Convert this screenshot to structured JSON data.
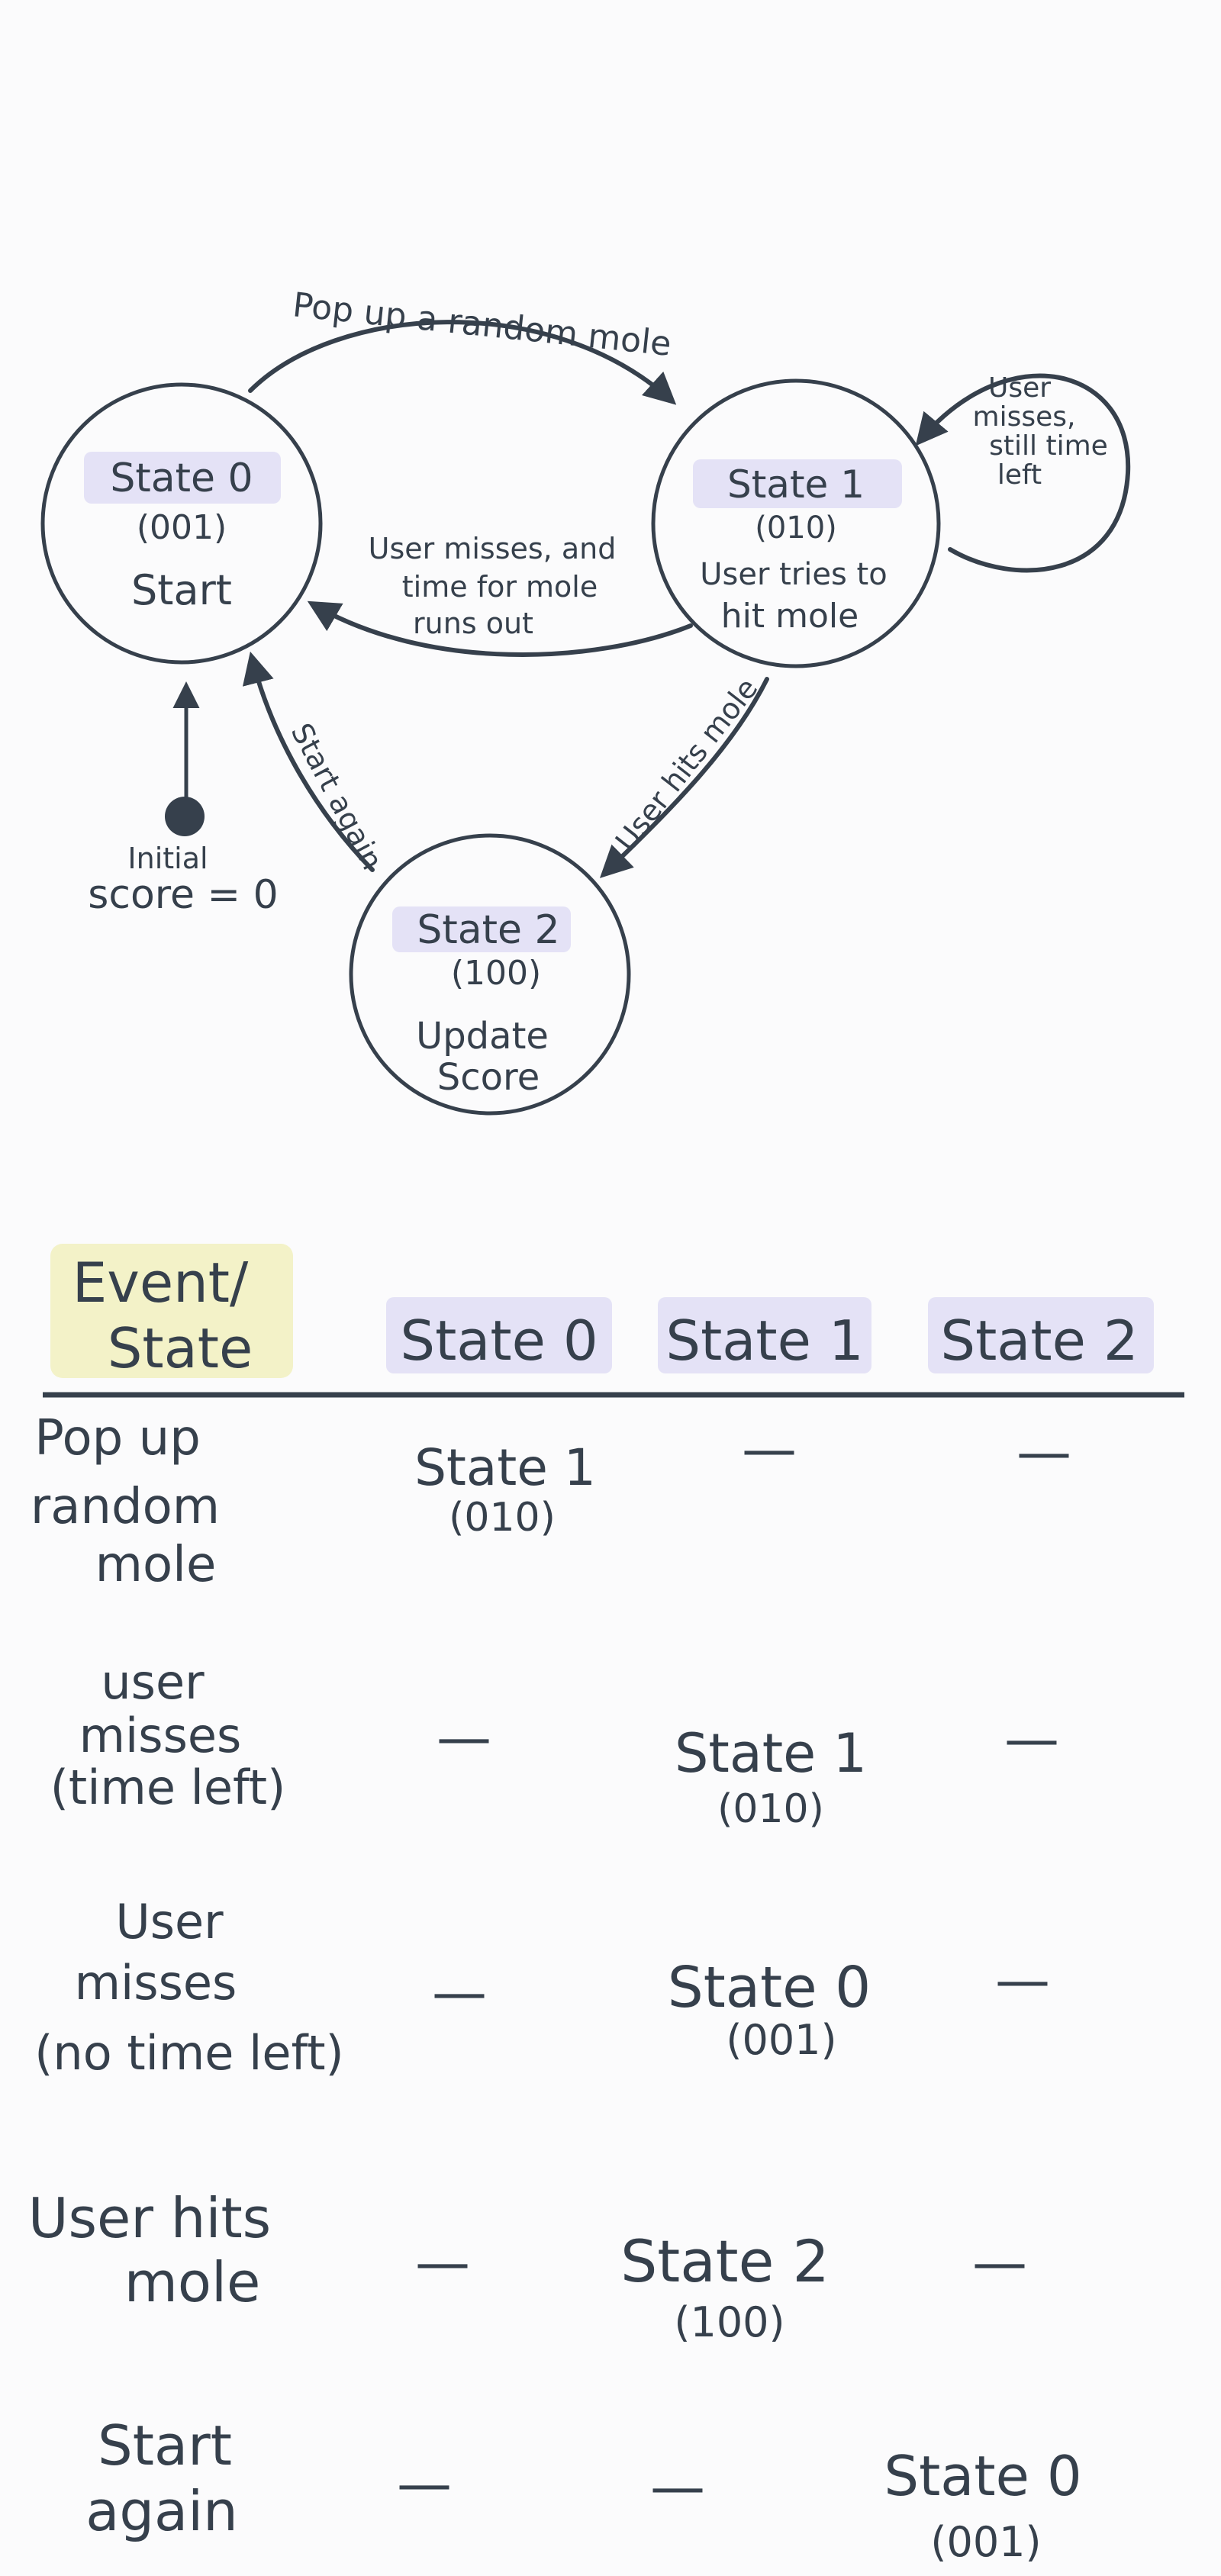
{
  "diagram": {
    "states": [
      {
        "name": "State 0",
        "code": "(001)",
        "desc_lines": [
          "Start"
        ]
      },
      {
        "name": "State 1",
        "code": "(010)",
        "desc_lines": [
          "User tries to",
          "hit mole"
        ]
      },
      {
        "name": "State 2",
        "code": "(100)",
        "desc_lines": [
          "Update",
          "Score"
        ]
      }
    ],
    "transitions": {
      "pop_up": "Pop up a random mole",
      "misses_time_out": [
        "User misses, and",
        "time for mole",
        "runs   out"
      ],
      "self_loop": [
        "User",
        "misses,",
        "still time",
        "left"
      ],
      "hits_mole": "User hits mole",
      "start_again": "Start again"
    },
    "initial": [
      "Initial",
      "score = 0"
    ]
  },
  "table": {
    "corner": [
      "Event/",
      "State"
    ],
    "columns": [
      "State 0",
      "State 1",
      "State 2"
    ],
    "rows": [
      {
        "event": [
          "Pop up",
          "random",
          "mole"
        ],
        "cells": [
          {
            "name": "State 1",
            "code": "(010)"
          },
          {
            "dash": "—"
          },
          {
            "dash": "—"
          }
        ]
      },
      {
        "event": [
          "user",
          "misses",
          "(time left)"
        ],
        "cells": [
          {
            "dash": "—"
          },
          {
            "name": "State 1",
            "code": "(010)"
          },
          {
            "dash": "—"
          }
        ]
      },
      {
        "event": [
          "User",
          "misses",
          "(no time left)"
        ],
        "cells": [
          {
            "dash": "—"
          },
          {
            "name": "State 0",
            "code": "(001)"
          },
          {
            "dash": "—"
          }
        ]
      },
      {
        "event": [
          "User hits",
          "mole"
        ],
        "cells": [
          {
            "dash": "—"
          },
          {
            "name": "State 2",
            "code": "(100)"
          },
          {
            "dash": "—"
          }
        ]
      },
      {
        "event": [
          "Start",
          "again"
        ],
        "cells": [
          {
            "dash": "—"
          },
          {
            "dash": "—"
          },
          {
            "name": "State 0",
            "code": "(001)"
          }
        ]
      }
    ]
  }
}
